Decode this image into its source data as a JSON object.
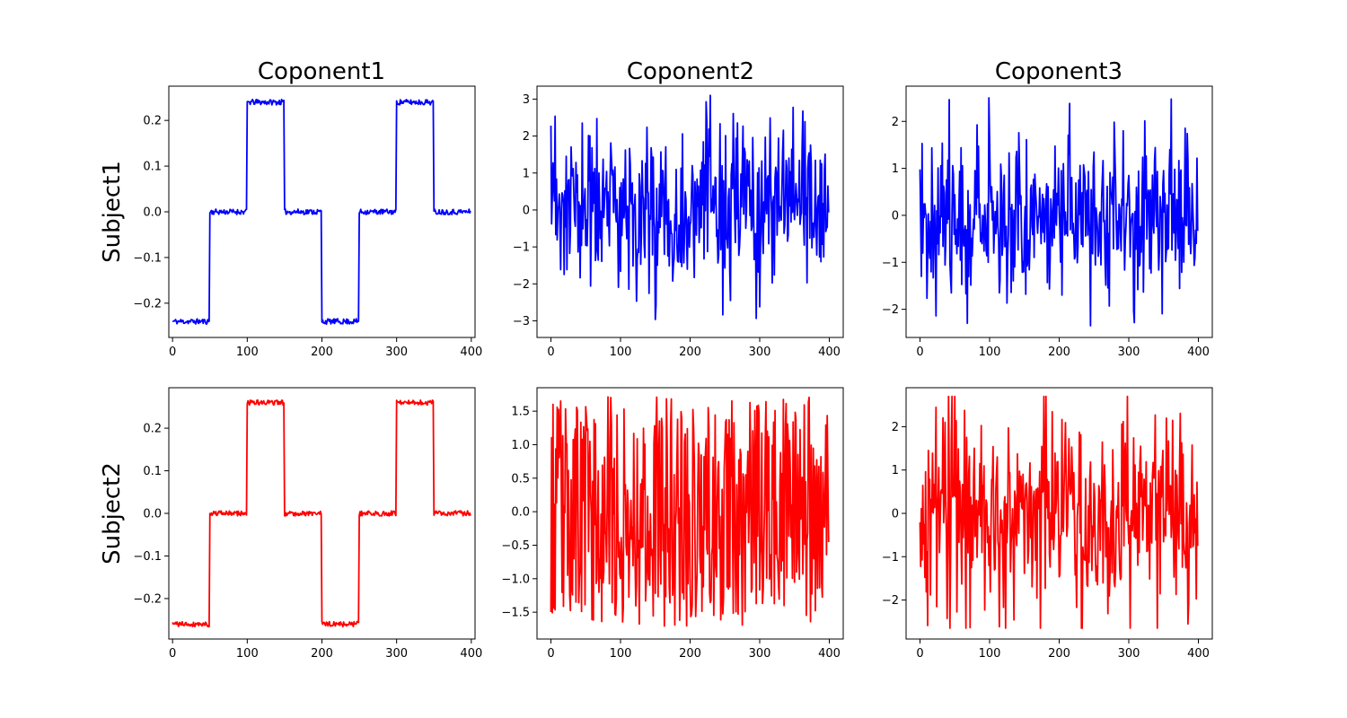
{
  "figure": {
    "column_titles": [
      "Coponent1",
      "Coponent2",
      "Coponent3"
    ],
    "row_labels": [
      "Subject1",
      "Subject2"
    ],
    "colors": {
      "row_1": "#0000ff",
      "row_2": "#ff0000"
    }
  },
  "chart_data": [
    {
      "type": "line",
      "title": "Coponent1",
      "row": "Subject1",
      "color": "#0000ff",
      "xlim": [
        -5,
        405
      ],
      "ylim": [
        -0.275,
        0.275
      ],
      "xticks": [
        0,
        100,
        200,
        300,
        400
      ],
      "yticks": [
        -0.2,
        -0.1,
        0.0,
        0.1,
        0.2
      ],
      "ytick_labels": [
        "−0.2",
        "−0.1",
        "0.0",
        "0.1",
        "0.2"
      ],
      "signal": {
        "kind": "square",
        "n": 400,
        "period": 200,
        "levels": [
          -0.24,
          0.0,
          0.24,
          0.0
        ],
        "noise": 0.006,
        "seed": 11
      },
      "grid": false,
      "legend": "none"
    },
    {
      "type": "line",
      "title": "Coponent2",
      "row": "Subject1",
      "color": "#0000ff",
      "xlim": [
        -20,
        420
      ],
      "ylim": [
        -3.45,
        3.35
      ],
      "xticks": [
        0,
        100,
        200,
        300,
        400
      ],
      "yticks": [
        -3,
        -2,
        -1,
        0,
        1,
        2,
        3
      ],
      "ytick_labels": [
        "−3",
        "−2",
        "−1",
        "0",
        "1",
        "2",
        "3"
      ],
      "signal": {
        "kind": "noise",
        "n": 400,
        "min": -3.2,
        "max": 3.1,
        "sd": 1.15,
        "seed": 23
      },
      "grid": false,
      "legend": "none"
    },
    {
      "type": "line",
      "title": "Coponent3",
      "row": "Subject1",
      "color": "#0000ff",
      "xlim": [
        -20,
        420
      ],
      "ylim": [
        -2.6,
        2.75
      ],
      "xticks": [
        0,
        100,
        200,
        300,
        400
      ],
      "yticks": [
        -2,
        -1,
        0,
        1,
        2
      ],
      "ytick_labels": [
        "−2",
        "−1",
        "0",
        "1",
        "2"
      ],
      "signal": {
        "kind": "noise",
        "n": 400,
        "min": -2.4,
        "max": 2.5,
        "sd": 0.85,
        "seed": 37
      },
      "grid": false,
      "legend": "none"
    },
    {
      "type": "line",
      "title": "",
      "row": "Subject2",
      "color": "#ff0000",
      "xlim": [
        -5,
        405
      ],
      "ylim": [
        -0.295,
        0.295
      ],
      "xticks": [
        0,
        100,
        200,
        300,
        400
      ],
      "yticks": [
        -0.2,
        -0.1,
        0.0,
        0.1,
        0.2
      ],
      "ytick_labels": [
        "−0.2",
        "−0.1",
        "0.0",
        "0.1",
        "0.2"
      ],
      "signal": {
        "kind": "square",
        "n": 400,
        "period": 200,
        "levels": [
          -0.26,
          0.0,
          0.26,
          0.0
        ],
        "noise": 0.006,
        "seed": 41
      },
      "grid": false,
      "legend": "none"
    },
    {
      "type": "line",
      "title": "",
      "row": "Subject2",
      "color": "#ff0000",
      "xlim": [
        -20,
        420
      ],
      "ylim": [
        -1.9,
        1.85
      ],
      "xticks": [
        0,
        100,
        200,
        300,
        400
      ],
      "yticks": [
        -1.5,
        -1.0,
        -0.5,
        0.0,
        0.5,
        1.0,
        1.5
      ],
      "ytick_labels": [
        "−1.5",
        "−1.0",
        "−0.5",
        "0.0",
        "0.5",
        "1.0",
        "1.5"
      ],
      "signal": {
        "kind": "uniform",
        "n": 400,
        "min": -1.72,
        "max": 1.72,
        "seed": 53
      },
      "grid": false,
      "legend": "none"
    },
    {
      "type": "line",
      "title": "",
      "row": "Subject2",
      "color": "#ff0000",
      "xlim": [
        -20,
        420
      ],
      "ylim": [
        -2.9,
        2.9
      ],
      "xticks": [
        0,
        100,
        200,
        300,
        400
      ],
      "yticks": [
        -2,
        -1,
        0,
        1,
        2
      ],
      "ytick_labels": [
        "−2",
        "−1",
        "0",
        "1",
        "2"
      ],
      "signal": {
        "kind": "noise",
        "n": 400,
        "min": -2.65,
        "max": 2.7,
        "sd": 1.2,
        "seed": 67
      },
      "grid": false,
      "legend": "none"
    }
  ]
}
